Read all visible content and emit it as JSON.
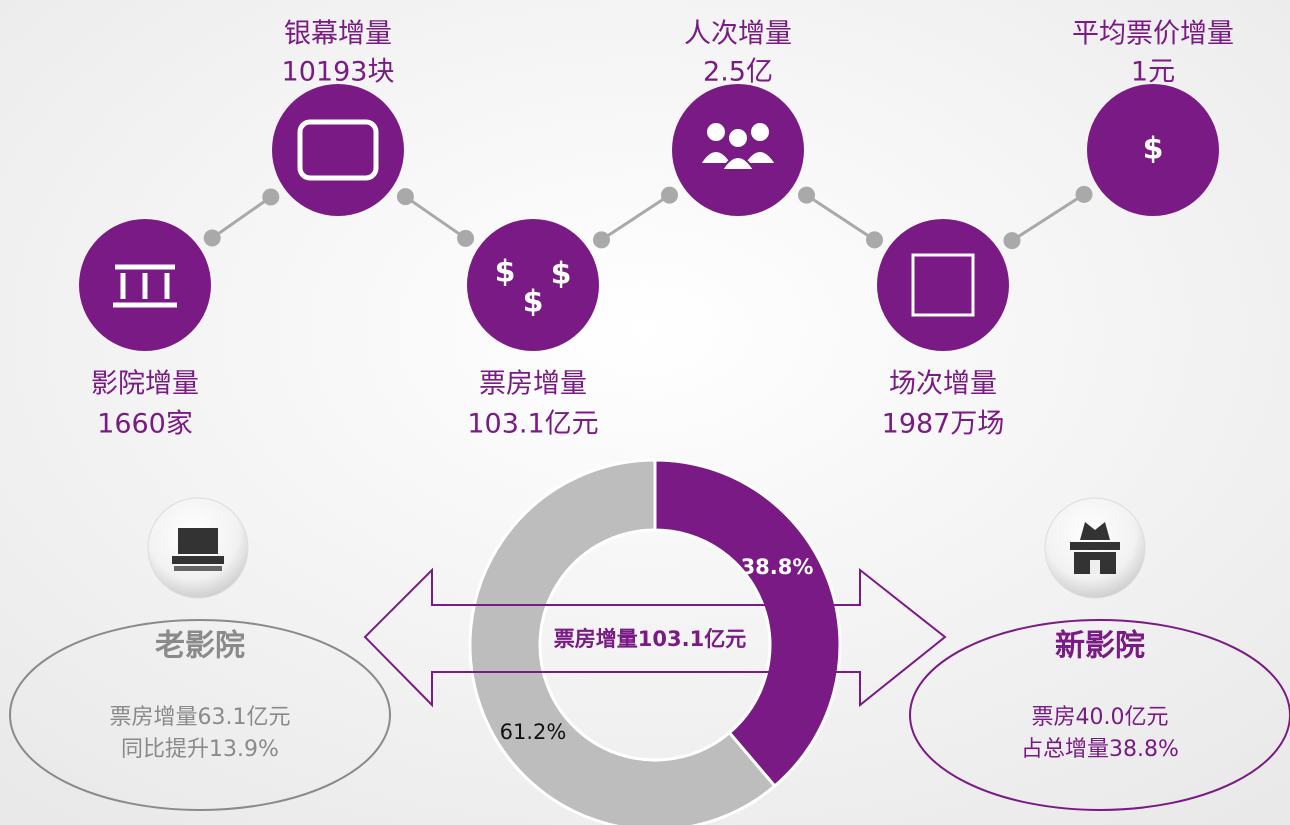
{
  "milestones": [
    {
      "label": "影院增量",
      "value": "1660家"
    },
    {
      "label": "银幕增量",
      "value": "10193块"
    },
    {
      "label": "票房增量",
      "value": "103.1亿元"
    },
    {
      "label": "人次增量",
      "value": "2.5亿"
    },
    {
      "label": "场次增量",
      "value": "1987万场"
    },
    {
      "label": "平均票价增量",
      "value": "1元"
    }
  ],
  "old_cinema": {
    "title": "老影院",
    "lines": [
      "票房增量63.1亿元",
      "同比提升13.9%"
    ]
  },
  "new_cinema": {
    "title": "新影院",
    "lines": [
      "票房40.0亿元",
      "占总增量38.8%"
    ]
  },
  "chart_data": {
    "type": "donut",
    "title": "票房增量103.1亿元",
    "values": [
      38.8,
      61.2
    ],
    "value_labels": [
      "38.8%",
      "61.2%"
    ],
    "colors": [
      "#7a1a84",
      "#bdbdbd"
    ]
  }
}
